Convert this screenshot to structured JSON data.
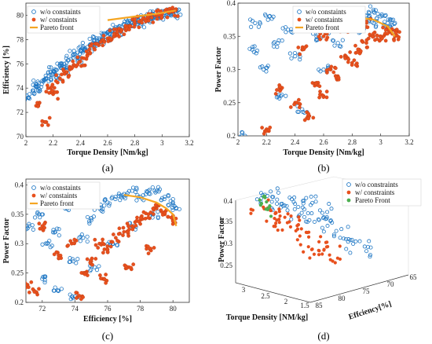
{
  "colors": {
    "blue": "#1f77c4",
    "orange": "#e8501d",
    "pareto": "#f5a623",
    "green": "#4caf50"
  },
  "chart_data": [
    {
      "id": "a",
      "type": "scatter",
      "panel_label": "(a)",
      "xlabel": "Torque Density [Nm/kg]",
      "ylabel": "Efficiency [%]",
      "xlim": [
        2,
        3.2
      ],
      "ylim": [
        70,
        81
      ],
      "xticks": [
        "2",
        "2.2",
        "2.4",
        "2.6",
        "2.8",
        "3",
        "3.2"
      ],
      "yticks": [
        "70",
        "72",
        "74",
        "76",
        "78",
        "80"
      ],
      "legend": [
        "w/o constaints",
        "w/ constaints",
        "Pareto front"
      ],
      "legend_position": "top-left",
      "series": [
        {
          "name": "w/o constaints",
          "marker": "open-circle",
          "x": [
            2.02,
            2.05,
            2.08,
            2.1,
            2.12,
            2.15,
            2.18,
            2.2,
            2.22,
            2.25,
            2.28,
            2.3,
            2.33,
            2.35,
            2.38,
            2.4,
            2.42,
            2.45,
            2.48,
            2.5,
            2.52,
            2.55,
            2.58,
            2.6,
            2.62,
            2.65,
            2.68,
            2.7,
            2.72,
            2.75,
            2.78,
            2.8,
            2.82,
            2.85,
            2.88,
            2.9,
            2.92,
            2.95,
            2.98,
            3.0,
            3.02,
            3.05,
            3.08,
            3.1
          ],
          "y": [
            73.2,
            73.8,
            74.3,
            73.9,
            74.6,
            74.8,
            75.1,
            75.4,
            74.9,
            75.8,
            76.0,
            75.5,
            76.4,
            76.8,
            76.2,
            77.1,
            77.4,
            77.0,
            77.6,
            77.9,
            78.1,
            77.7,
            78.4,
            78.6,
            78.2,
            78.9,
            79.0,
            78.7,
            79.2,
            79.4,
            79.1,
            79.5,
            79.6,
            79.3,
            79.8,
            79.9,
            79.7,
            80.0,
            80.1,
            79.9,
            80.2,
            80.2,
            80.1,
            80.3
          ]
        },
        {
          "name": "w/ constaints",
          "marker": "filled-circle",
          "x": [
            2.1,
            2.15,
            2.18,
            2.2,
            2.25,
            2.3,
            2.35,
            2.4,
            2.45,
            2.5,
            2.55,
            2.6,
            2.65,
            2.7,
            2.75,
            2.8,
            2.85,
            2.9,
            2.95,
            3.0,
            3.05,
            3.08
          ],
          "y": [
            72.8,
            71.2,
            74.0,
            73.5,
            74.8,
            75.3,
            75.9,
            76.2,
            76.7,
            77.3,
            77.8,
            78.1,
            78.5,
            78.8,
            79.1,
            79.3,
            79.6,
            79.8,
            80.0,
            80.1,
            80.2,
            80.3
          ]
        },
        {
          "name": "Pareto front",
          "marker": "line",
          "x": [
            2.6,
            2.8,
            2.95,
            3.05,
            3.1
          ],
          "y": [
            79.6,
            79.9,
            80.1,
            80.3,
            80.4
          ]
        }
      ]
    },
    {
      "id": "b",
      "type": "scatter",
      "panel_label": "(b)",
      "xlabel": "Torque Density [Nm/kg]",
      "ylabel": "Power Factor",
      "xlim": [
        2,
        3.2
      ],
      "ylim": [
        0.2,
        0.4
      ],
      "xticks": [
        "2",
        "2.2",
        "2.4",
        "2.6",
        "2.8",
        "3",
        "3.2"
      ],
      "yticks": [
        "0.2",
        "0.25",
        "0.3",
        "0.35",
        "0.4"
      ],
      "legend": [
        "w/o constaints",
        "w/ constaints",
        "Pareto front"
      ],
      "legend_position": "top-middle",
      "series": [
        {
          "name": "w/o constaints",
          "marker": "open-circle",
          "x": [
            2.05,
            2.1,
            2.12,
            2.18,
            2.22,
            2.28,
            2.35,
            2.4,
            2.45,
            2.5,
            2.55,
            2.6,
            2.65,
            2.7,
            2.75,
            2.8,
            2.85,
            2.9,
            2.95,
            3.0,
            3.05,
            3.08,
            3.1,
            2.3,
            2.45,
            2.6,
            2.7,
            2.95
          ],
          "y": [
            0.2,
            0.33,
            0.37,
            0.3,
            0.38,
            0.34,
            0.36,
            0.32,
            0.37,
            0.38,
            0.35,
            0.38,
            0.36,
            0.37,
            0.38,
            0.37,
            0.36,
            0.38,
            0.37,
            0.38,
            0.37,
            0.36,
            0.37,
            0.26,
            0.24,
            0.3,
            0.34,
            0.39
          ]
        },
        {
          "name": "w/ constaints",
          "marker": "filled-circle",
          "x": [
            2.2,
            2.3,
            2.4,
            2.5,
            2.55,
            2.6,
            2.65,
            2.7,
            2.75,
            2.8,
            2.85,
            2.9,
            2.95,
            3.0,
            3.05,
            3.08,
            3.1,
            2.45,
            2.6,
            2.75,
            2.9
          ],
          "y": [
            0.21,
            0.27,
            0.25,
            0.23,
            0.28,
            0.26,
            0.3,
            0.29,
            0.32,
            0.31,
            0.33,
            0.34,
            0.35,
            0.35,
            0.36,
            0.36,
            0.35,
            0.33,
            0.35,
            0.36,
            0.37
          ]
        },
        {
          "name": "Pareto front",
          "marker": "line",
          "x": [
            2.6,
            2.8,
            2.95,
            3.05,
            3.1
          ],
          "y": [
            0.382,
            0.38,
            0.375,
            0.365,
            0.35
          ]
        }
      ]
    },
    {
      "id": "c",
      "type": "scatter",
      "panel_label": "(c)",
      "xlabel": "Efficiency [%]",
      "ylabel": "Power Factor",
      "xlim": [
        71,
        81
      ],
      "ylim": [
        0.2,
        0.41
      ],
      "xticks": [
        "72",
        "74",
        "76",
        "78",
        "80"
      ],
      "yticks": [
        "0.2",
        "0.25",
        "0.3",
        "0.35",
        "0.4"
      ],
      "legend": [
        "w/o constaints",
        "w/ constaints",
        "Pareto front"
      ],
      "legend_position": "top-left",
      "series": [
        {
          "name": "w/o constaints",
          "marker": "open-circle",
          "x": [
            71.2,
            71.8,
            72.3,
            72.8,
            73.4,
            73.9,
            74.5,
            75.0,
            75.5,
            76.0,
            76.5,
            77.0,
            77.5,
            78.0,
            78.5,
            79.0,
            79.5,
            80.0,
            80.2,
            72.0,
            73.0,
            74.0,
            75.2,
            76.3,
            77.6,
            78.8
          ],
          "y": [
            0.33,
            0.35,
            0.3,
            0.32,
            0.36,
            0.27,
            0.31,
            0.34,
            0.36,
            0.37,
            0.38,
            0.38,
            0.39,
            0.38,
            0.39,
            0.39,
            0.38,
            0.37,
            0.36,
            0.24,
            0.22,
            0.21,
            0.26,
            0.3,
            0.33,
            0.35
          ]
        },
        {
          "name": "w/ constaints",
          "marker": "filled-circle",
          "x": [
            71.1,
            71.5,
            72.0,
            73.0,
            73.8,
            74.5,
            75.0,
            75.5,
            76.0,
            76.5,
            77.0,
            77.5,
            78.0,
            78.5,
            79.0,
            79.5,
            80.0,
            74.2,
            75.8,
            77.3,
            78.6
          ],
          "y": [
            0.23,
            0.22,
            0.33,
            0.28,
            0.3,
            0.25,
            0.27,
            0.3,
            0.29,
            0.31,
            0.32,
            0.33,
            0.34,
            0.35,
            0.36,
            0.35,
            0.34,
            0.21,
            0.24,
            0.26,
            0.29
          ]
        },
        {
          "name": "Pareto front",
          "marker": "line",
          "x": [
            77.0,
            78.0,
            79.0,
            79.6,
            80.0,
            80.2
          ],
          "y": [
            0.383,
            0.379,
            0.37,
            0.36,
            0.35,
            0.33
          ]
        }
      ]
    },
    {
      "id": "d",
      "type": "scatter-3d",
      "panel_label": "(d)",
      "xlabel": "Torque Density [NM/kg]",
      "ylabel": "Effciency[%]",
      "zlabel": "Power Factor",
      "xticks": [
        "3",
        "2.5",
        "2",
        "1.5"
      ],
      "yticks": [
        "85",
        "80",
        "75",
        "70",
        "65"
      ],
      "zticks": [
        "0.25",
        "0.3",
        "0.35",
        "0.4"
      ],
      "legend": [
        "w/o constraints",
        "w/ constraints",
        "Pareto Front"
      ],
      "legend_position": "top-right",
      "series": [
        {
          "name": "w/o constraints",
          "marker": "open-circle",
          "points": [
            [
              3.1,
              80,
              0.39
            ],
            [
              3.0,
              79,
              0.38
            ],
            [
              2.9,
              78,
              0.36
            ],
            [
              2.8,
              77,
              0.35
            ],
            [
              2.6,
              75,
              0.33
            ],
            [
              2.4,
              74,
              0.32
            ],
            [
              2.2,
              73,
              0.3
            ],
            [
              2.0,
              72,
              0.28
            ],
            [
              1.8,
              71,
              0.27
            ],
            [
              2.5,
              76,
              0.37
            ],
            [
              2.3,
              74,
              0.35
            ],
            [
              2.7,
              78,
              0.38
            ]
          ]
        },
        {
          "name": "w/ constraints",
          "marker": "filled-circle",
          "points": [
            [
              3.1,
              80,
              0.36
            ],
            [
              3.0,
              79,
              0.34
            ],
            [
              2.8,
              78,
              0.32
            ],
            [
              2.6,
              77,
              0.3
            ],
            [
              2.5,
              76,
              0.28
            ],
            [
              2.4,
              75,
              0.27
            ],
            [
              2.2,
              74,
              0.26
            ],
            [
              2.9,
              79,
              0.33
            ]
          ]
        },
        {
          "name": "Pareto Front",
          "marker": "filled-circle",
          "points": [
            [
              3.1,
              80.5,
              0.38
            ],
            [
              3.05,
              80.2,
              0.37
            ],
            [
              3.0,
              80,
              0.36
            ]
          ]
        }
      ]
    }
  ]
}
